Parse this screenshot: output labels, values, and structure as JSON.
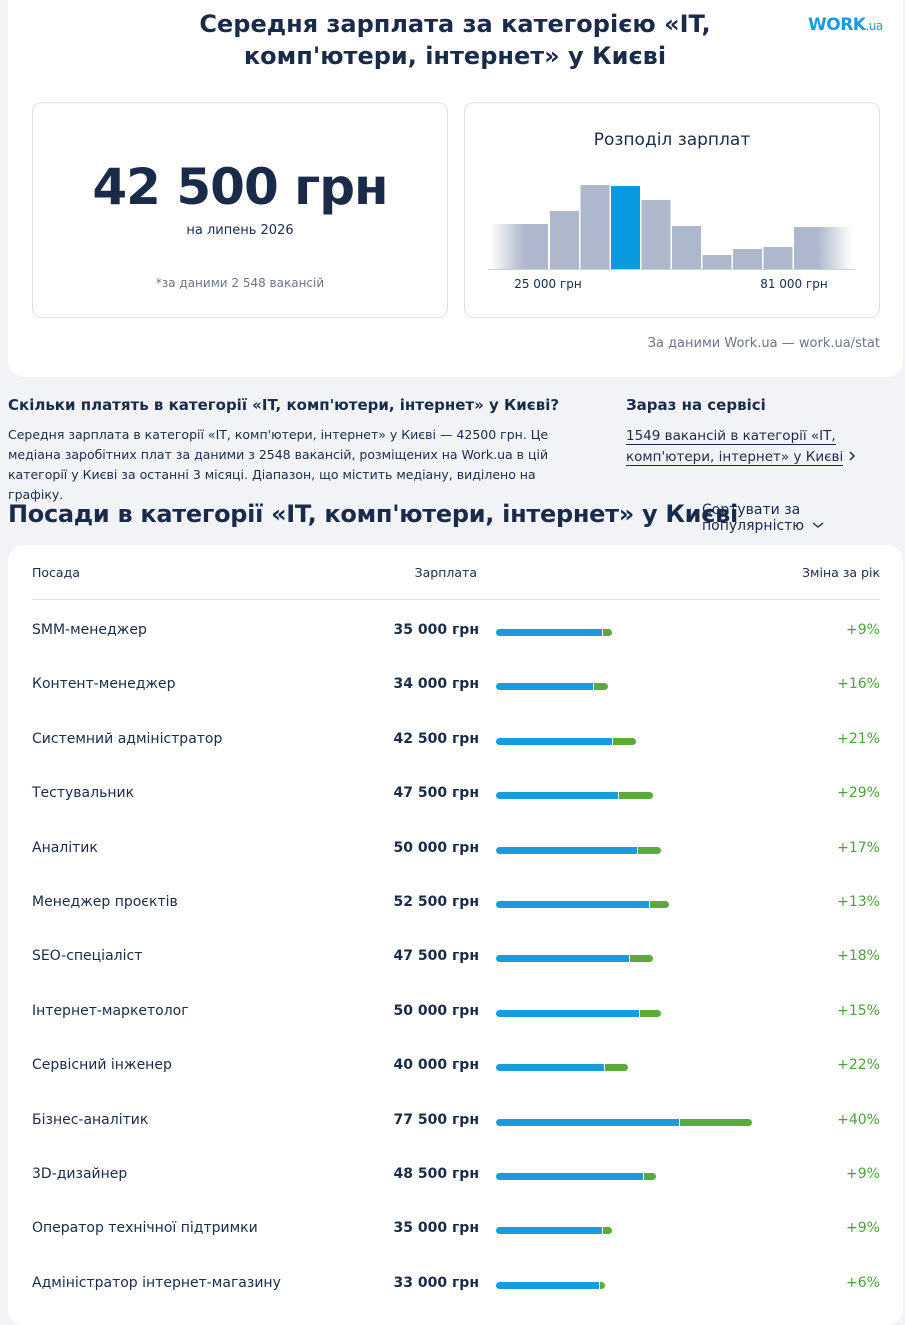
{
  "header": {
    "title": "Середня зарплата за категорією «IT, комп'ютери, інтернет» у Києві",
    "logo": {
      "word": "WORK",
      "domain": ".ua"
    }
  },
  "summary": {
    "salary": "42 500 грн",
    "period": "на липень 2026",
    "note": "*за даними 2 548 вакансій"
  },
  "distribution": {
    "title": "Розподіл зарплат",
    "bars": [
      45,
      58,
      84,
      83,
      69,
      43,
      14,
      20,
      22,
      42
    ],
    "highlight_index": 3,
    "bar_color": "#adb8cc",
    "highlight_color": "#0a9ae0",
    "min_label": "25 000 грн",
    "max_label": "81 000 грн"
  },
  "source": "За даними Work.ua — work.ua/stat",
  "info": {
    "question": "Скільки платять в категорії «IT, комп'ютери, інтернет» у Києві?",
    "text": "Середня зарплата в категорії «IT, комп'ютери, інтернет» у Києві — 42500 грн. Це медіана заробітних плат за даними з 2548 вакансій, розміщених на Work.ua в цій категорії у Києві за останні 3 місяці. Діапазон, що містить медіану, виділено на графіку.",
    "service_title": "Зараз на сервісі",
    "vacancies_link": "1549 вакансій в категорії «IT, комп'ютери, інтернет» у Києві"
  },
  "positions": {
    "title": "Посади в категорії «IT, комп'ютери, інтернет» у Києві",
    "sort": "Сортувати за популярністю",
    "columns": [
      "Посада",
      "Зарплата",
      "Зміна за рік"
    ],
    "salary_color": "#1a9be0",
    "change_color": "#5aab3b",
    "rows": [
      {
        "name": "SMM-менеджер",
        "salary": 35000,
        "salary_label": "35 000 грн",
        "change": 9,
        "change_label": "+9%"
      },
      {
        "name": "Контент-менеджер",
        "salary": 34000,
        "salary_label": "34 000 грн",
        "change": 16,
        "change_label": "+16%"
      },
      {
        "name": "Системний адміністратор",
        "salary": 42500,
        "salary_label": "42 500 грн",
        "change": 21,
        "change_label": "+21%"
      },
      {
        "name": "Тестувальник",
        "salary": 47500,
        "salary_label": "47 500 грн",
        "change": 29,
        "change_label": "+29%"
      },
      {
        "name": "Аналітик",
        "salary": 50000,
        "salary_label": "50 000 грн",
        "change": 17,
        "change_label": "+17%"
      },
      {
        "name": "Менеджер проєктів",
        "salary": 52500,
        "salary_label": "52 500 грн",
        "change": 13,
        "change_label": "+13%"
      },
      {
        "name": "SEO-спеціаліст",
        "salary": 47500,
        "salary_label": "47 500 грн",
        "change": 18,
        "change_label": "+18%"
      },
      {
        "name": "Інтернет-маркетолог",
        "salary": 50000,
        "salary_label": "50 000 грн",
        "change": 15,
        "change_label": "+15%"
      },
      {
        "name": "Сервісний інженер",
        "salary": 40000,
        "salary_label": "40 000 грн",
        "change": 22,
        "change_label": "+22%"
      },
      {
        "name": "Бізнес-аналітик",
        "salary": 77500,
        "salary_label": "77 500 грн",
        "change": 40,
        "change_label": "+40%"
      },
      {
        "name": "3D-дизайнер",
        "salary": 48500,
        "salary_label": "48 500 грн",
        "change": 9,
        "change_label": "+9%"
      },
      {
        "name": "Оператор технічної підтримки",
        "salary": 35000,
        "salary_label": "35 000 грн",
        "change": 9,
        "change_label": "+9%"
      },
      {
        "name": "Адміністратор інтернет-магазину",
        "salary": 33000,
        "salary_label": "33 000 грн",
        "change": 6,
        "change_label": "+6%"
      }
    ]
  }
}
